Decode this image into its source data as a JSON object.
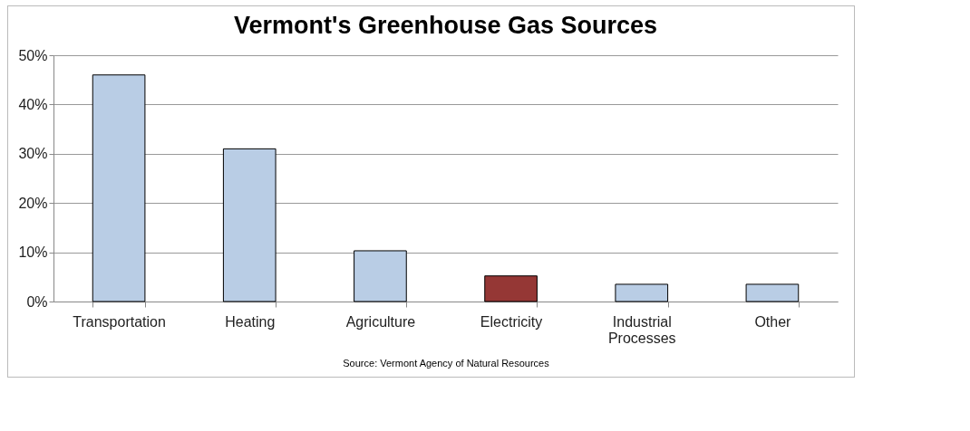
{
  "chart_data": {
    "type": "bar",
    "title": "Vermont's Greenhouse Gas Sources",
    "categories": [
      "Transportation",
      "Heating",
      "Agriculture",
      "Electricity",
      "Industrial Processes",
      "Other"
    ],
    "values": [
      46,
      31,
      10.3,
      5.2,
      3.5,
      3.5
    ],
    "colors": [
      "#b9cde5",
      "#b9cde5",
      "#b9cde5",
      "#953735",
      "#b9cde5",
      "#b9cde5"
    ],
    "ylim": [
      0,
      50
    ],
    "yticks": [
      {
        "value": 0,
        "label": "0%"
      },
      {
        "value": 10,
        "label": "10%"
      },
      {
        "value": 20,
        "label": "20%"
      },
      {
        "value": 30,
        "label": "30%"
      },
      {
        "value": 40,
        "label": "40%"
      },
      {
        "value": 50,
        "label": "50%"
      }
    ],
    "grid": "y",
    "annotations": [
      "Source: Vermont Agency of Natural Resources"
    ]
  }
}
